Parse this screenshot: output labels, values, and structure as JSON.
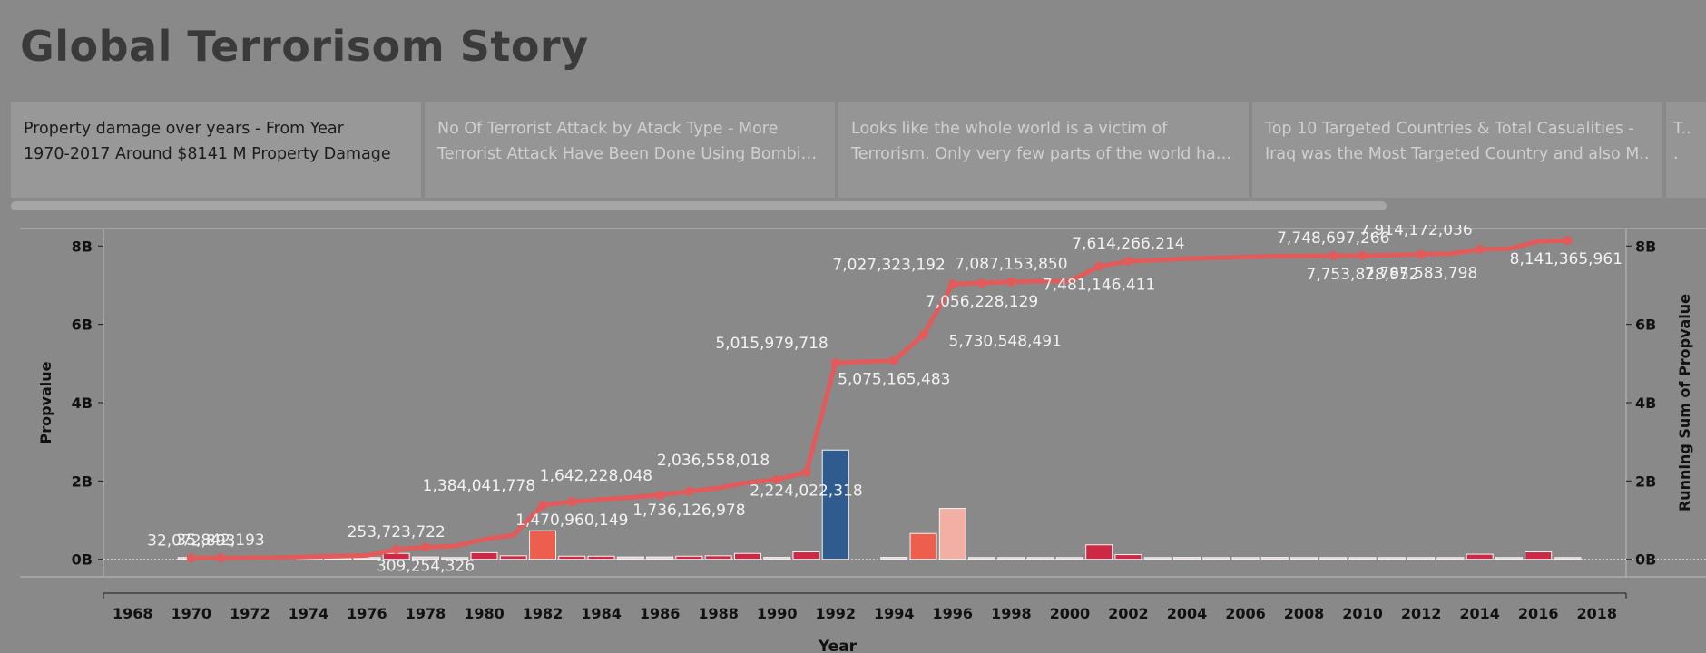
{
  "title": "Global Terrorisom Story",
  "story_points": [
    {
      "line1": "Property damage over years - From Year",
      "line2": "1970-2017 Around $8141 M Property Damage",
      "active": true
    },
    {
      "line1": "No Of Terrorist Attack by Atack Type - More",
      "line2": "Terrorist Attack Have Been Done Using Bombing..",
      "active": false
    },
    {
      "line1": "Looks like the whole world is a victim of",
      "line2": "Terrorism. Only very few parts of the world have..",
      "active": false
    },
    {
      "line1": "Top 10 Targeted Countries & Total Casualities -",
      "line2": "Iraq was the Most  Targeted Country and also M..",
      "active": false
    },
    {
      "line1": "T..",
      "line2": ".",
      "active": false
    }
  ],
  "colors": {
    "line": "#e25a5a",
    "bar_dark_red": "#cc2a44",
    "bar_orange": "#ee5e4e",
    "bar_pink": "#f2b0a4",
    "bar_light": "#e8d0d0",
    "bar_blue": "#2f5b8e",
    "axis_text": "#111111",
    "label_text": "#f2f2f2"
  },
  "chart_data": {
    "type": "bar+line",
    "xlabel": "Year",
    "ylabel": "Propvalue",
    "ylabel_right": "Running Sum of Propvalue",
    "xlim": [
      1967,
      2019
    ],
    "ylim": [
      -0.4,
      8.4
    ],
    "x_ticks": [
      "1968",
      "1970",
      "1972",
      "1974",
      "1976",
      "1978",
      "1980",
      "1982",
      "1984",
      "1986",
      "1988",
      "1990",
      "1992",
      "1994",
      "1996",
      "1998",
      "2000",
      "2002",
      "2004",
      "2006",
      "2008",
      "2010",
      "2012",
      "2014",
      "2016",
      "2018"
    ],
    "y_ticks": [
      "0B",
      "2B",
      "4B",
      "6B",
      "8B"
    ],
    "y_tick_values": [
      0,
      2,
      4,
      6,
      8
    ],
    "bars": [
      {
        "year": 1970,
        "value": 0.032,
        "color": "bar_light"
      },
      {
        "year": 1971,
        "value": 0.004,
        "color": "bar_light"
      },
      {
        "year": 1972,
        "value": 0.003,
        "color": "bar_light"
      },
      {
        "year": 1973,
        "value": 0.003,
        "color": "bar_light"
      },
      {
        "year": 1974,
        "value": 0.02,
        "color": "bar_light"
      },
      {
        "year": 1975,
        "value": 0.02,
        "color": "bar_light"
      },
      {
        "year": 1976,
        "value": 0.03,
        "color": "bar_light"
      },
      {
        "year": 1977,
        "value": 0.15,
        "color": "bar_dark_red"
      },
      {
        "year": 1978,
        "value": 0.06,
        "color": "bar_light"
      },
      {
        "year": 1979,
        "value": 0.03,
        "color": "bar_light"
      },
      {
        "year": 1980,
        "value": 0.17,
        "color": "bar_dark_red"
      },
      {
        "year": 1981,
        "value": 0.09,
        "color": "bar_dark_red"
      },
      {
        "year": 1982,
        "value": 0.73,
        "color": "bar_orange"
      },
      {
        "year": 1983,
        "value": 0.08,
        "color": "bar_dark_red"
      },
      {
        "year": 1984,
        "value": 0.08,
        "color": "bar_dark_red"
      },
      {
        "year": 1985,
        "value": 0.06,
        "color": "bar_light"
      },
      {
        "year": 1986,
        "value": 0.06,
        "color": "bar_light"
      },
      {
        "year": 1987,
        "value": 0.08,
        "color": "bar_dark_red"
      },
      {
        "year": 1988,
        "value": 0.09,
        "color": "bar_dark_red"
      },
      {
        "year": 1989,
        "value": 0.15,
        "color": "bar_dark_red"
      },
      {
        "year": 1990,
        "value": 0.05,
        "color": "bar_light"
      },
      {
        "year": 1991,
        "value": 0.19,
        "color": "bar_dark_red"
      },
      {
        "year": 1992,
        "value": 2.79,
        "color": "bar_blue"
      },
      {
        "year": 1994,
        "value": 0.05,
        "color": "bar_light"
      },
      {
        "year": 1995,
        "value": 0.66,
        "color": "bar_orange"
      },
      {
        "year": 1996,
        "value": 1.3,
        "color": "bar_pink"
      },
      {
        "year": 1997,
        "value": 0.03,
        "color": "bar_light"
      },
      {
        "year": 1998,
        "value": 0.03,
        "color": "bar_light"
      },
      {
        "year": 1999,
        "value": 0.03,
        "color": "bar_light"
      },
      {
        "year": 2000,
        "value": 0.03,
        "color": "bar_light"
      },
      {
        "year": 2001,
        "value": 0.37,
        "color": "bar_dark_red"
      },
      {
        "year": 2002,
        "value": 0.12,
        "color": "bar_dark_red"
      },
      {
        "year": 2003,
        "value": 0.02,
        "color": "bar_light"
      },
      {
        "year": 2004,
        "value": 0.05,
        "color": "bar_light"
      },
      {
        "year": 2005,
        "value": 0.02,
        "color": "bar_light"
      },
      {
        "year": 2006,
        "value": 0.02,
        "color": "bar_light"
      },
      {
        "year": 2007,
        "value": 0.05,
        "color": "bar_light"
      },
      {
        "year": 2008,
        "value": 0.02,
        "color": "bar_light"
      },
      {
        "year": 2009,
        "value": 0.02,
        "color": "bar_light"
      },
      {
        "year": 2010,
        "value": 0.02,
        "color": "bar_light"
      },
      {
        "year": 2011,
        "value": 0.02,
        "color": "bar_light"
      },
      {
        "year": 2012,
        "value": 0.02,
        "color": "bar_light"
      },
      {
        "year": 2013,
        "value": 0.02,
        "color": "bar_light"
      },
      {
        "year": 2014,
        "value": 0.13,
        "color": "bar_dark_red"
      },
      {
        "year": 2015,
        "value": 0.02,
        "color": "bar_light"
      },
      {
        "year": 2016,
        "value": 0.19,
        "color": "bar_dark_red"
      },
      {
        "year": 2017,
        "value": 0.02,
        "color": "bar_light"
      }
    ],
    "running_sum": [
      {
        "year": 1970,
        "value": 0.032,
        "marker": true,
        "label": "32,072,893",
        "label_pos": "above"
      },
      {
        "year": 1971,
        "value": 0.036,
        "marker": true,
        "label": "35,842,193",
        "label_pos": "above"
      },
      {
        "year": 1972,
        "value": 0.04,
        "marker": false
      },
      {
        "year": 1973,
        "value": 0.043,
        "marker": false
      },
      {
        "year": 1974,
        "value": 0.063,
        "marker": false
      },
      {
        "year": 1975,
        "value": 0.08,
        "marker": false
      },
      {
        "year": 1976,
        "value": 0.1,
        "marker": false
      },
      {
        "year": 1977,
        "value": 0.254,
        "marker": true,
        "label": "253,723,722",
        "label_pos": "above"
      },
      {
        "year": 1978,
        "value": 0.309,
        "marker": true,
        "label": "309,254,326",
        "label_pos": "below"
      },
      {
        "year": 1979,
        "value": 0.34,
        "marker": false
      },
      {
        "year": 1980,
        "value": 0.51,
        "marker": false
      },
      {
        "year": 1981,
        "value": 0.62,
        "marker": false
      },
      {
        "year": 1982,
        "value": 1.384,
        "marker": true,
        "label": "1,384,041,778",
        "label_pos": "above-left"
      },
      {
        "year": 1983,
        "value": 1.471,
        "marker": true,
        "label": "1,470,960,149",
        "label_pos": "below"
      },
      {
        "year": 1984,
        "value": 1.53,
        "marker": false
      },
      {
        "year": 1985,
        "value": 1.58,
        "marker": false
      },
      {
        "year": 1986,
        "value": 1.642,
        "marker": true,
        "label": "1,642,228,048",
        "label_pos": "above-left"
      },
      {
        "year": 1987,
        "value": 1.736,
        "marker": true,
        "label": "1,736,126,978",
        "label_pos": "below"
      },
      {
        "year": 1988,
        "value": 1.82,
        "marker": false
      },
      {
        "year": 1989,
        "value": 1.96,
        "marker": false
      },
      {
        "year": 1990,
        "value": 2.037,
        "marker": true,
        "label": "2,036,558,018",
        "label_pos": "above-left"
      },
      {
        "year": 1991,
        "value": 2.224,
        "marker": true,
        "label": "2,224,022,318",
        "label_pos": "below"
      },
      {
        "year": 1992,
        "value": 5.016,
        "marker": true,
        "label": "5,015,979,718",
        "label_pos": "above-left"
      },
      {
        "year": 1994,
        "value": 5.075,
        "marker": true,
        "label": "5,075,165,483",
        "label_pos": "below"
      },
      {
        "year": 1995,
        "value": 5.731,
        "marker": true,
        "label": "5,730,548,491",
        "label_pos": "right"
      },
      {
        "year": 1996,
        "value": 7.027,
        "marker": true,
        "label": "7,027,323,192",
        "label_pos": "above-left"
      },
      {
        "year": 1997,
        "value": 7.056,
        "marker": true,
        "label": "7,056,228,129",
        "label_pos": "below"
      },
      {
        "year": 1998,
        "value": 7.087,
        "marker": true,
        "label": "7,087,153,850",
        "label_pos": "above"
      },
      {
        "year": 1999,
        "value": 7.1,
        "marker": false
      },
      {
        "year": 2000,
        "value": 7.11,
        "marker": false
      },
      {
        "year": 2001,
        "value": 7.481,
        "marker": true,
        "label": "7,481,146,411",
        "label_pos": "below"
      },
      {
        "year": 2002,
        "value": 7.614,
        "marker": true,
        "label": "7,614,266,214",
        "label_pos": "above"
      },
      {
        "year": 2003,
        "value": 7.64,
        "marker": false
      },
      {
        "year": 2004,
        "value": 7.68,
        "marker": false
      },
      {
        "year": 2005,
        "value": 7.7,
        "marker": false
      },
      {
        "year": 2006,
        "value": 7.72,
        "marker": false
      },
      {
        "year": 2007,
        "value": 7.74,
        "marker": false
      },
      {
        "year": 2008,
        "value": 7.745,
        "marker": false
      },
      {
        "year": 2009,
        "value": 7.749,
        "marker": true,
        "label": "7,748,697,266",
        "label_pos": "above"
      },
      {
        "year": 2010,
        "value": 7.754,
        "marker": true,
        "label": "7,753,828,952",
        "label_pos": "below"
      },
      {
        "year": 2011,
        "value": 7.77,
        "marker": false
      },
      {
        "year": 2012,
        "value": 7.788,
        "marker": true,
        "label": "7,787,583,798",
        "label_pos": "below"
      },
      {
        "year": 2013,
        "value": 7.8,
        "marker": false
      },
      {
        "year": 2014,
        "value": 7.914,
        "marker": true,
        "label": "7,914,172,036",
        "label_pos": "above-left"
      },
      {
        "year": 2015,
        "value": 7.93,
        "marker": false
      },
      {
        "year": 2016,
        "value": 8.12,
        "marker": false
      },
      {
        "year": 2017,
        "value": 8.141,
        "marker": true,
        "label": "8,141,365,961",
        "label_pos": "below"
      }
    ]
  }
}
